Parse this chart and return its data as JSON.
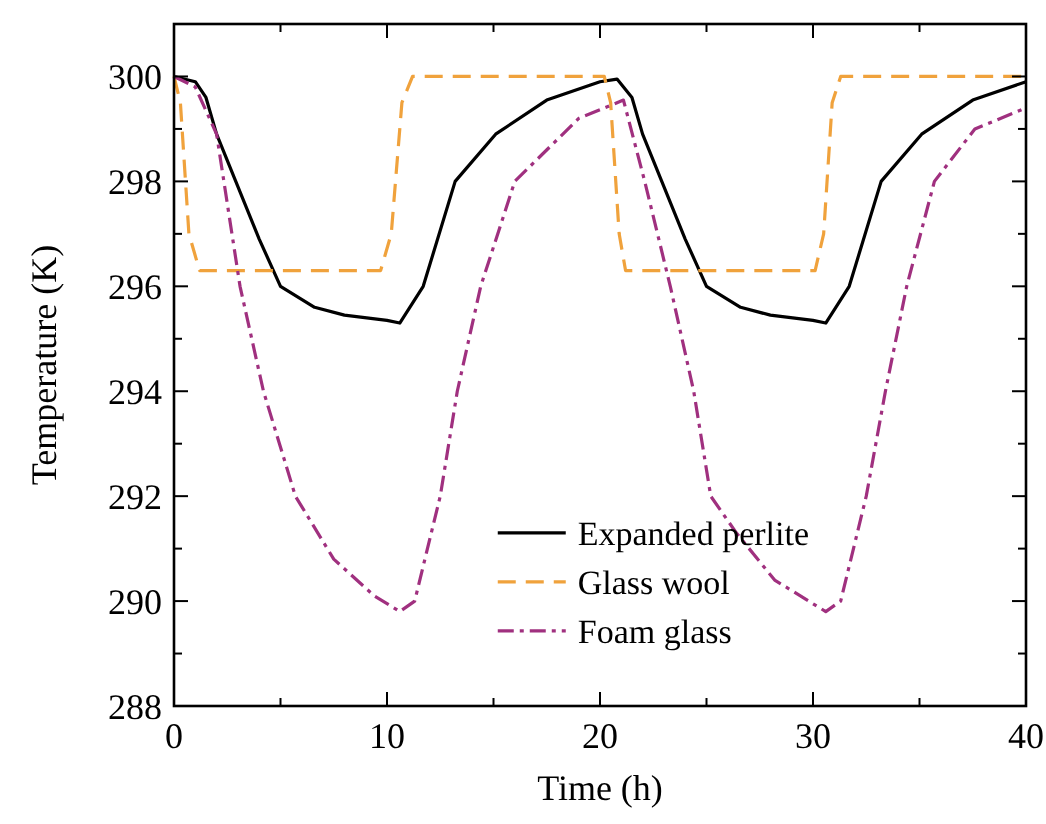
{
  "chart_data": {
    "type": "line",
    "xlabel": "Time (h)",
    "ylabel": "Temperature (K)",
    "xlim": [
      0,
      40
    ],
    "ylim": [
      288,
      301
    ],
    "xticks": [
      0,
      {
        "value": 5,
        "label": null
      },
      10,
      {
        "value": 15,
        "label": null
      },
      20,
      {
        "value": 25,
        "label": null
      },
      30,
      {
        "value": 35,
        "label": null
      },
      40
    ],
    "yticks": [
      288,
      {
        "value": 289,
        "label": null
      },
      290,
      {
        "value": 291,
        "label": null
      },
      292,
      {
        "value": 293,
        "label": null
      },
      294,
      {
        "value": 295,
        "label": null
      },
      296,
      {
        "value": 297,
        "label": null
      },
      298,
      {
        "value": 299,
        "label": null
      },
      300
    ],
    "grid": false,
    "legend": "bottom right",
    "marker": "none",
    "series": [
      {
        "name": "Expanded perlite",
        "color": "#000000",
        "line_style": "solid",
        "x": [
          0,
          1,
          1.5,
          2,
          2.9,
          4,
          5,
          6.6,
          8,
          10,
          10.6,
          11.7,
          13.2,
          15.1,
          17.5,
          20,
          20.8,
          21.5,
          22,
          22.9,
          24,
          25,
          26.6,
          28,
          30,
          30.6,
          31.7,
          33.2,
          35.1,
          37.5,
          40
        ],
        "values": [
          300,
          299.9,
          299.6,
          298.9,
          298,
          296.9,
          296,
          295.6,
          295.45,
          295.35,
          295.3,
          296,
          298,
          298.9,
          299.55,
          299.9,
          299.95,
          299.6,
          298.9,
          298,
          296.9,
          296,
          295.6,
          295.45,
          295.35,
          295.3,
          296,
          298,
          298.9,
          299.55,
          299.9
        ]
      },
      {
        "name": "Glass wool",
        "color": "#f0a23c",
        "line_style": "dashed",
        "x": [
          0,
          0.3,
          0.7,
          1.2,
          9.7,
          10.2,
          10.7,
          11.2,
          20.2,
          20.5,
          20.9,
          21.2,
          30.1,
          30.5,
          30.9,
          31.3,
          40
        ],
        "values": [
          300,
          299.5,
          297,
          296.3,
          296.3,
          297,
          299.5,
          300,
          300,
          299.5,
          297,
          296.3,
          296.3,
          297,
          299.5,
          300,
          300
        ]
      },
      {
        "name": "Foam glass",
        "color": "#a0307f",
        "line_style": "dashdot",
        "x": [
          0,
          1,
          2,
          3.1,
          4.2,
          5.7,
          7.5,
          9.4,
          10.6,
          11.3,
          12.5,
          13.3,
          14.4,
          16,
          19,
          21.1,
          22.1,
          23.3,
          24.4,
          25.2,
          26.4,
          28.2,
          30.6,
          31.3,
          32.5,
          33.4,
          34.4,
          35.7,
          37.6,
          40
        ],
        "values": [
          300,
          299.8,
          298.9,
          296,
          294,
          292,
          290.8,
          290.1,
          289.8,
          290,
          292,
          294,
          296,
          298,
          299.2,
          299.55,
          298,
          296,
          294,
          292,
          291.3,
          290.4,
          289.8,
          290,
          292,
          294,
          296,
          298,
          299,
          299.4
        ]
      }
    ]
  }
}
